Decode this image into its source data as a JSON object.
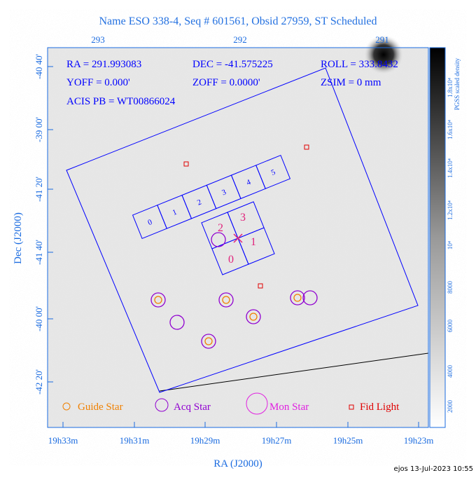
{
  "header": {
    "title": "Name ESO 338-4, Seq # 601561, Obsid 27959, ST Scheduled"
  },
  "info": {
    "rows": [
      [
        "RA = 291.993083",
        "DEC = -41.575225",
        "ROLL = 333.8432"
      ],
      [
        "YOFF =   0.000'",
        "ZOFF =  0.0000'",
        "ZSIM = 0 mm"
      ],
      [
        "ACIS PB = WT00866024"
      ]
    ]
  },
  "top_axis": {
    "labels": [
      "293",
      "292",
      "291"
    ]
  },
  "left_axis": {
    "title": "Dec (J2000)",
    "labels": [
      "-40 40'",
      "-39 00'",
      "-41 20'",
      "-41 40'",
      "-40 00'",
      "-42 20'"
    ]
  },
  "bottom_axis": {
    "title": "RA (J2000)",
    "labels": [
      "19h33m",
      "19h31m",
      "19h29m",
      "19h27m",
      "19h25m",
      "19h23m"
    ]
  },
  "colorbar": {
    "title": "PGSS scaled density",
    "labels": [
      "2000",
      "4000",
      "6000",
      "8000",
      "10⁴",
      "1.2x10⁴",
      "1.4x10⁴",
      "1.6x10⁴",
      "1.8x10⁴"
    ]
  },
  "chips": {
    "s": [
      "0",
      "1",
      "2",
      "3",
      "4",
      "5"
    ],
    "i": [
      "2",
      "3",
      "0",
      "1"
    ]
  },
  "legend": [
    "Guide Star",
    "Acq Star",
    "Mon Star",
    "Fid Light"
  ],
  "footer": "ejos 13-Jul-2023 10:55"
}
